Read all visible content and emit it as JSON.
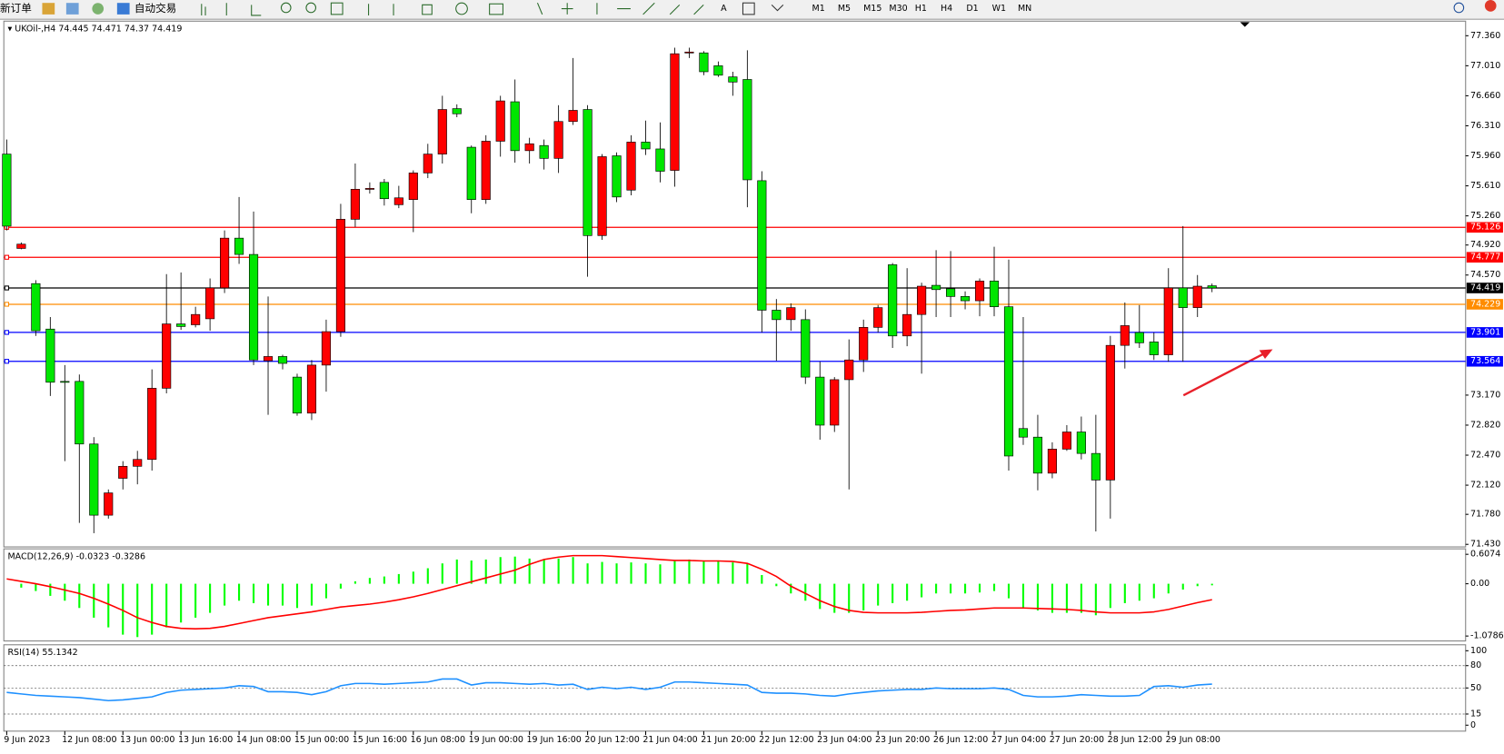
{
  "toolbar": {
    "buttons": [
      "新订单",
      "自动交易"
    ],
    "timeframes": [
      "M1",
      "M5",
      "M15",
      "M30",
      "H1",
      "H4",
      "D1",
      "W1",
      "MN"
    ]
  },
  "chart_data": [
    {
      "type": "candlestick",
      "title": "UKOil-,H4",
      "up_color": "#ff0000",
      "down_color": "#00e600",
      "categories": [
        "9 Jun 2023",
        null,
        null,
        null,
        "12 Jun 08:00",
        null,
        null,
        null,
        "13 Jun 00:00",
        null,
        null,
        null,
        "13 Jun 16:00",
        null,
        null,
        null,
        "14 Jun 08:00",
        null,
        null,
        null,
        "15 Jun 00:00",
        null,
        null,
        null,
        "15 Jun 16:00",
        null,
        null,
        null,
        "16 Jun 08:00",
        null,
        null,
        null,
        "19 Jun 00:00",
        null,
        null,
        null,
        "19 Jun 16:00",
        null,
        null,
        null,
        "20 Jun 12:00",
        null,
        null,
        null,
        "21 Jun 04:00",
        null,
        null,
        null,
        "21 Jun 20:00",
        null,
        null,
        null,
        "22 Jun 12:00",
        null,
        null,
        null,
        "23 Jun 04:00",
        null,
        null,
        null,
        "23 Jun 20:00",
        null,
        null,
        null,
        "26 Jun 12:00",
        null,
        null,
        null,
        "27 Jun 04:00",
        null,
        null,
        null,
        "27 Jun 20:00",
        null,
        null,
        null,
        "28 Jun 12:00",
        null,
        null,
        null,
        "29 Jun 08:00",
        null,
        null,
        null
      ],
      "open": [
        75.98,
        74.88,
        74.47,
        73.94,
        73.33,
        73.33,
        72.6,
        71.77,
        72.2,
        72.34,
        72.42,
        73.25,
        74.0,
        73.99,
        74.06,
        74.42,
        75.0,
        74.81,
        73.57,
        73.62,
        73.38,
        72.96,
        73.52,
        73.91,
        75.22,
        75.57,
        75.65,
        75.39,
        75.45,
        75.76,
        75.98,
        76.51,
        76.06,
        75.45,
        76.13,
        76.59,
        76.02,
        76.08,
        75.93,
        76.36,
        76.5,
        75.03,
        75.96,
        75.56,
        76.12,
        76.04,
        75.79,
        77.16,
        77.16,
        77.01,
        76.88,
        76.85,
        75.67,
        74.16,
        74.05,
        74.05,
        73.38,
        72.82,
        73.35,
        73.58,
        73.96,
        74.69,
        73.86,
        74.11,
        74.45,
        74.41,
        74.32,
        74.27,
        74.5,
        74.2,
        72.78,
        72.68,
        72.26,
        72.54,
        72.74,
        72.49,
        72.18,
        73.75,
        73.9,
        73.79,
        73.64,
        74.42,
        74.19,
        74.445
      ],
      "high": [
        76.15,
        74.95,
        74.51,
        74.08,
        73.52,
        73.41,
        72.68,
        72.07,
        72.4,
        72.52,
        73.47,
        74.58,
        74.6,
        74.2,
        74.53,
        75.09,
        75.48,
        75.31,
        74.32,
        73.64,
        73.42,
        73.58,
        74.05,
        75.4,
        75.87,
        75.65,
        75.69,
        75.61,
        75.79,
        76.1,
        76.66,
        76.56,
        76.08,
        76.2,
        76.66,
        76.85,
        76.17,
        76.15,
        76.55,
        77.1,
        76.55,
        75.98,
        76.0,
        76.2,
        76.37,
        76.35,
        77.22,
        77.22,
        77.18,
        77.06,
        76.94,
        77.19,
        75.78,
        74.29,
        74.24,
        74.17,
        73.56,
        73.38,
        73.82,
        74.05,
        74.22,
        74.71,
        74.65,
        74.48,
        74.86,
        74.85,
        74.38,
        74.53,
        74.9,
        74.75,
        74.08,
        72.94,
        72.62,
        72.82,
        72.92,
        72.94,
        73.86,
        74.25,
        74.22,
        73.9,
        74.65,
        75.14,
        74.57,
        74.471
      ],
      "low": [
        75.09,
        74.87,
        73.86,
        73.16,
        72.4,
        71.68,
        71.56,
        71.73,
        72.07,
        72.13,
        72.29,
        73.19,
        73.93,
        73.96,
        73.92,
        74.36,
        74.7,
        73.52,
        72.94,
        73.47,
        72.93,
        72.88,
        73.21,
        73.85,
        75.13,
        75.52,
        75.38,
        75.35,
        75.07,
        75.7,
        75.87,
        76.41,
        75.29,
        75.4,
        75.95,
        75.88,
        75.87,
        75.8,
        75.76,
        76.32,
        74.55,
        74.98,
        75.42,
        75.5,
        75.97,
        75.65,
        75.6,
        77.1,
        76.9,
        76.88,
        76.66,
        75.36,
        73.9,
        73.57,
        73.92,
        73.3,
        72.65,
        72.74,
        72.07,
        73.44,
        73.9,
        73.72,
        73.74,
        73.42,
        74.08,
        74.08,
        74.17,
        74.09,
        74.09,
        72.29,
        72.59,
        72.06,
        72.2,
        72.52,
        72.42,
        71.58,
        71.73,
        73.48,
        73.72,
        73.58,
        73.56,
        73.56,
        74.08,
        74.37
      ],
      "close": [
        75.14,
        74.93,
        73.92,
        73.32,
        73.32,
        72.6,
        71.77,
        72.03,
        72.34,
        72.42,
        73.25,
        74.0,
        73.97,
        74.11,
        74.42,
        75.0,
        74.81,
        73.58,
        73.62,
        73.54,
        72.96,
        73.52,
        73.91,
        75.22,
        75.57,
        75.58,
        75.46,
        75.47,
        75.76,
        75.98,
        76.5,
        76.45,
        75.45,
        76.13,
        76.6,
        76.02,
        76.1,
        75.93,
        76.36,
        76.49,
        75.03,
        75.95,
        75.48,
        76.12,
        76.04,
        75.78,
        77.15,
        77.17,
        76.94,
        76.9,
        76.82,
        75.68,
        74.16,
        74.05,
        74.19,
        73.38,
        72.82,
        73.35,
        73.58,
        73.96,
        74.19,
        73.86,
        74.11,
        74.44,
        74.4,
        74.32,
        74.27,
        74.5,
        74.2,
        72.46,
        72.68,
        72.26,
        72.54,
        72.74,
        72.49,
        72.18,
        73.75,
        73.98,
        73.78,
        73.64,
        74.42,
        74.19,
        74.44,
        74.419
      ],
      "ylim": [
        71.4,
        77.53
      ],
      "yticks": [
        {
          "value": 77.36,
          "label": "77.360"
        },
        {
          "value": 77.01,
          "label": "77.010"
        },
        {
          "value": 76.66,
          "label": "76.660"
        },
        {
          "value": 76.31,
          "label": "76.310"
        },
        {
          "value": 75.96,
          "label": "75.960"
        },
        {
          "value": 75.61,
          "label": "75.610"
        },
        {
          "value": 75.26,
          "label": "75.260"
        },
        {
          "value": 74.92,
          "label": "74.920"
        },
        {
          "value": 74.57,
          "label": "74.570"
        },
        {
          "value": 73.17,
          "label": "73.170"
        },
        {
          "value": 72.82,
          "label": "72.820"
        },
        {
          "value": 72.47,
          "label": "72.470"
        },
        {
          "value": 72.12,
          "label": "72.120"
        },
        {
          "value": 71.78,
          "label": "71.780"
        },
        {
          "value": 71.43,
          "label": "71.430"
        }
      ],
      "levels": [
        {
          "value": 75.126,
          "color": "#ff0000"
        },
        {
          "value": 74.777,
          "color": "#ff0000"
        },
        {
          "value": 74.419,
          "color": "#000000"
        },
        {
          "value": 74.229,
          "color": "#ff8c00"
        },
        {
          "value": 73.901,
          "color": "#0000ff"
        },
        {
          "value": 73.564,
          "color": "#0000ff"
        }
      ]
    },
    {
      "type": "macd",
      "title": "MACD(12,26,9)",
      "ylim": [
        -1.18,
        0.72
      ],
      "yticks": [
        0.6074,
        {
          "value": 0,
          "label": "0.00"
        },
        -1.0786
      ],
      "series": [
        {
          "kind": "bar",
          "color": "#00ff00",
          "values": [
            0.0,
            -0.08,
            -0.15,
            -0.25,
            -0.35,
            -0.5,
            -0.7,
            -0.9,
            -1.05,
            -1.1,
            -1.05,
            -0.9,
            -0.8,
            -0.7,
            -0.6,
            -0.45,
            -0.35,
            -0.4,
            -0.45,
            -0.45,
            -0.5,
            -0.45,
            -0.3,
            -0.1,
            0.05,
            0.12,
            0.15,
            0.2,
            0.25,
            0.32,
            0.42,
            0.5,
            0.48,
            0.5,
            0.55,
            0.56,
            0.52,
            0.5,
            0.52,
            0.55,
            0.42,
            0.45,
            0.42,
            0.44,
            0.42,
            0.4,
            0.48,
            0.5,
            0.48,
            0.46,
            0.44,
            0.42,
            0.18,
            -0.05,
            -0.2,
            -0.35,
            -0.52,
            -0.6,
            -0.6,
            -0.55,
            -0.45,
            -0.4,
            -0.35,
            -0.28,
            -0.2,
            -0.2,
            -0.2,
            -0.18,
            -0.15,
            -0.3,
            -0.5,
            -0.55,
            -0.6,
            -0.6,
            -0.6,
            -0.65,
            -0.5,
            -0.4,
            -0.35,
            -0.3,
            -0.2,
            -0.12,
            -0.05,
            -0.0323
          ]
        },
        {
          "kind": "line",
          "color": "#ff0000",
          "values": [
            0.1,
            0.05,
            0.0,
            -0.06,
            -0.13,
            -0.2,
            -0.3,
            -0.42,
            -0.55,
            -0.7,
            -0.8,
            -0.88,
            -0.92,
            -0.93,
            -0.92,
            -0.88,
            -0.82,
            -0.76,
            -0.7,
            -0.66,
            -0.62,
            -0.58,
            -0.53,
            -0.48,
            -0.45,
            -0.42,
            -0.38,
            -0.33,
            -0.27,
            -0.2,
            -0.12,
            -0.04,
            0.04,
            0.12,
            0.2,
            0.28,
            0.4,
            0.5,
            0.55,
            0.58,
            0.58,
            0.58,
            0.56,
            0.54,
            0.52,
            0.5,
            0.48,
            0.48,
            0.47,
            0.47,
            0.46,
            0.42,
            0.3,
            0.15,
            -0.05,
            -0.2,
            -0.35,
            -0.47,
            -0.55,
            -0.59,
            -0.6,
            -0.6,
            -0.6,
            -0.59,
            -0.57,
            -0.55,
            -0.54,
            -0.52,
            -0.5,
            -0.5,
            -0.5,
            -0.51,
            -0.52,
            -0.53,
            -0.55,
            -0.58,
            -0.6,
            -0.6,
            -0.6,
            -0.58,
            -0.53,
            -0.46,
            -0.39,
            -0.3286
          ]
        }
      ]
    },
    {
      "type": "line",
      "title": "RSI(14)",
      "ylim": [
        -8,
        108
      ],
      "yticks": [
        100,
        80,
        50,
        15,
        0
      ],
      "grid": "dashed",
      "series": [
        {
          "color": "#1e90ff",
          "values": [
            44,
            42,
            40,
            39,
            38,
            37,
            35,
            33,
            34,
            36,
            38,
            44,
            47,
            48,
            49,
            50,
            53,
            52,
            45,
            45,
            44,
            41,
            45,
            53,
            56,
            56,
            55,
            56,
            57,
            58,
            62,
            62,
            54,
            57,
            57,
            56,
            55,
            56,
            54,
            55,
            48,
            51,
            49,
            51,
            48,
            51,
            58,
            58,
            57,
            56,
            55,
            54,
            44,
            43,
            43,
            42,
            40,
            39,
            42,
            44,
            46,
            47,
            48,
            48,
            50,
            49,
            49,
            49,
            50,
            48,
            40,
            38,
            38,
            39,
            41,
            40,
            39,
            39,
            40,
            52,
            53,
            51,
            54,
            55.1342
          ]
        }
      ]
    }
  ]
}
